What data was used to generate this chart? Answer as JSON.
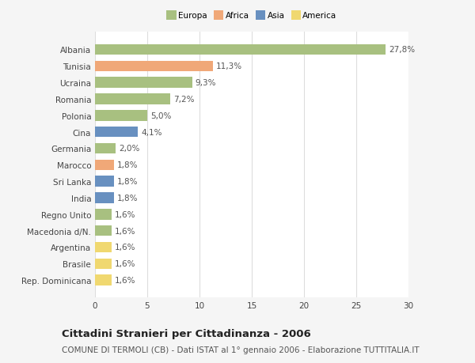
{
  "categories": [
    "Albania",
    "Tunisia",
    "Ucraina",
    "Romania",
    "Polonia",
    "Cina",
    "Germania",
    "Marocco",
    "Sri Lanka",
    "India",
    "Regno Unito",
    "Macedonia d/N.",
    "Argentina",
    "Brasile",
    "Rep. Dominicana"
  ],
  "values": [
    27.8,
    11.3,
    9.3,
    7.2,
    5.0,
    4.1,
    2.0,
    1.8,
    1.8,
    1.8,
    1.6,
    1.6,
    1.6,
    1.6,
    1.6
  ],
  "labels": [
    "27,8%",
    "11,3%",
    "9,3%",
    "7,2%",
    "5,0%",
    "4,1%",
    "2,0%",
    "1,8%",
    "1,8%",
    "1,8%",
    "1,6%",
    "1,6%",
    "1,6%",
    "1,6%",
    "1,6%"
  ],
  "colors": [
    "#a8c080",
    "#f0a878",
    "#a8c080",
    "#a8c080",
    "#a8c080",
    "#6890c0",
    "#a8c080",
    "#f0a878",
    "#6890c0",
    "#6890c0",
    "#a8c080",
    "#a8c080",
    "#f0d870",
    "#f0d870",
    "#f0d870"
  ],
  "legend_labels": [
    "Europa",
    "Africa",
    "Asia",
    "America"
  ],
  "legend_colors": [
    "#a8c080",
    "#f0a878",
    "#6890c0",
    "#f0d870"
  ],
  "title": "Cittadini Stranieri per Cittadinanza - 2006",
  "subtitle": "COMUNE DI TERMOLI (CB) - Dati ISTAT al 1° gennaio 2006 - Elaborazione TUTTITALIA.IT",
  "xlim": [
    0,
    30
  ],
  "xticks": [
    0,
    5,
    10,
    15,
    20,
    25,
    30
  ],
  "background_color": "#f5f5f5",
  "plot_bg_color": "#ffffff",
  "grid_color": "#dddddd",
  "bar_height": 0.65,
  "label_fontsize": 7.5,
  "tick_fontsize": 7.5,
  "title_fontsize": 9.5,
  "subtitle_fontsize": 7.5
}
